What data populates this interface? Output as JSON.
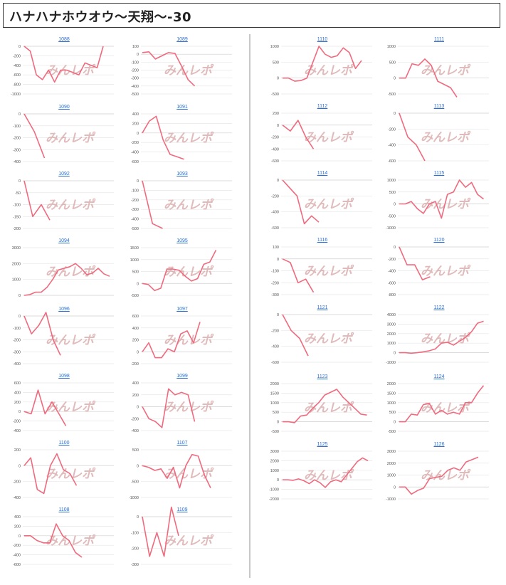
{
  "header": {
    "title": "ハナハナホウオウ〜天翔〜-30"
  },
  "style": {
    "line_color": "#f06a7e",
    "grid_color": "#e6e6e6",
    "axis_label_color": "#555555",
    "link_color": "#2a6fd6",
    "watermark_color": "#d7a5a5",
    "watermark_text": "みんレポ"
  },
  "chart_data": [
    {
      "type": "line",
      "title": "1088",
      "yticks": [
        0,
        -200,
        -400,
        -600,
        -800,
        -1000
      ],
      "ylim": [
        -1000,
        0
      ],
      "y": [
        0,
        -100,
        -600,
        -700,
        -500,
        -750,
        -500,
        -500,
        -550,
        -600,
        -350,
        -400,
        -450,
        0
      ]
    },
    {
      "type": "line",
      "title": "1089",
      "yticks": [
        100,
        0,
        -100,
        -200,
        -300,
        -400,
        -500
      ],
      "ylim": [
        -500,
        100
      ],
      "y": [
        20,
        30,
        -60,
        -20,
        20,
        10,
        -150,
        -320,
        -400
      ]
    },
    {
      "type": "line",
      "title": "1090",
      "yticks": [
        0,
        -100,
        -200,
        -300,
        -400
      ],
      "ylim": [
        -400,
        0
      ],
      "y": [
        0,
        -150,
        -370
      ]
    },
    {
      "type": "line",
      "title": "1091",
      "yticks": [
        400,
        200,
        0,
        -200,
        -400,
        -600
      ],
      "ylim": [
        -600,
        400
      ],
      "y": [
        0,
        250,
        350,
        -150,
        -450,
        -500,
        -550
      ]
    },
    {
      "type": "line",
      "title": "1092",
      "yticks": [
        0,
        -50,
        -100,
        -150,
        -200
      ],
      "ylim": [
        -200,
        0
      ],
      "y": [
        0,
        -150,
        -100,
        -165
      ]
    },
    {
      "type": "line",
      "title": "1093",
      "yticks": [
        0,
        -100,
        -200,
        -300,
        -400,
        -500
      ],
      "ylim": [
        -500,
        0
      ],
      "y": [
        0,
        -450,
        -500
      ]
    },
    {
      "type": "line",
      "title": "1094",
      "yticks": [
        3000,
        2000,
        1000,
        0
      ],
      "ylim": [
        0,
        3000
      ],
      "y": [
        0,
        50,
        200,
        200,
        500,
        1000,
        1600,
        1700,
        1800,
        2000,
        1700,
        1300,
        1400,
        1700,
        1350,
        1200
      ]
    },
    {
      "type": "line",
      "title": "1095",
      "yticks": [
        1500,
        1000,
        500,
        0,
        -500
      ],
      "ylim": [
        -500,
        1500
      ],
      "y": [
        0,
        -50,
        -300,
        -200,
        600,
        600,
        550,
        300,
        100,
        200,
        800,
        900,
        1400
      ]
    },
    {
      "type": "line",
      "title": "1096",
      "yticks": [
        0,
        -100,
        -200,
        -300,
        -400
      ],
      "ylim": [
        -400,
        0
      ],
      "y": [
        0,
        -150,
        -80,
        30,
        -200,
        -330
      ]
    },
    {
      "type": "line",
      "title": "1097",
      "yticks": [
        600,
        400,
        200,
        0,
        -200
      ],
      "ylim": [
        -200,
        600
      ],
      "y": [
        0,
        150,
        -100,
        -100,
        50,
        0,
        300,
        350,
        150,
        500
      ]
    },
    {
      "type": "line",
      "title": "1098",
      "yticks": [
        600,
        400,
        200,
        0,
        -200,
        -400
      ],
      "ylim": [
        -400,
        600
      ],
      "y": [
        0,
        -50,
        450,
        -50,
        200,
        -50,
        -300
      ]
    },
    {
      "type": "line",
      "title": "1099",
      "yticks": [
        400,
        200,
        0,
        -200,
        -400
      ],
      "ylim": [
        -400,
        400
      ],
      "y": [
        0,
        -200,
        -250,
        -350,
        300,
        200,
        240,
        200,
        -250
      ]
    },
    {
      "type": "line",
      "title": "1100",
      "yticks": [
        200,
        0,
        -200,
        -400
      ],
      "ylim": [
        -400,
        200
      ],
      "y": [
        0,
        100,
        -300,
        -350,
        0,
        150,
        -50,
        -100,
        -250
      ]
    },
    {
      "type": "line",
      "title": "1107",
      "yticks": [
        500,
        0,
        -500,
        -1000
      ],
      "ylim": [
        -1000,
        500
      ],
      "y": [
        0,
        -50,
        -150,
        -100,
        -400,
        -50,
        -700,
        0,
        350,
        300,
        -300,
        -700
      ]
    },
    {
      "type": "line",
      "title": "1108",
      "yticks": [
        400,
        200,
        0,
        -200,
        -400,
        -600
      ],
      "ylim": [
        -600,
        400
      ],
      "y": [
        0,
        0,
        -100,
        -150,
        -150,
        250,
        0,
        -100,
        -350,
        -450
      ]
    },
    {
      "type": "line",
      "title": "1109",
      "yticks": [
        0,
        -100,
        -200,
        -300
      ],
      "ylim": [
        -300,
        0
      ],
      "y": [
        0,
        -250,
        -100,
        -250,
        60,
        -120
      ]
    },
    {
      "type": "line",
      "title": "1110",
      "yticks": [
        1000,
        500,
        0,
        -500
      ],
      "ylim": [
        -500,
        1000
      ],
      "y": [
        0,
        0,
        -100,
        -80,
        0,
        500,
        1000,
        750,
        650,
        700,
        950,
        800,
        300,
        550
      ]
    },
    {
      "type": "line",
      "title": "1111",
      "yticks": [
        1000,
        500,
        0,
        -500
      ],
      "ylim": [
        -500,
        1000
      ],
      "y": [
        0,
        0,
        450,
        400,
        600,
        400,
        -100,
        -200,
        -300,
        -600
      ]
    },
    {
      "type": "line",
      "title": "1112",
      "yticks": [
        200,
        0,
        -200,
        -400,
        -600
      ],
      "ylim": [
        -600,
        200
      ],
      "y": [
        0,
        -100,
        80,
        -200,
        -400
      ]
    },
    {
      "type": "line",
      "title": "1113",
      "yticks": [
        0,
        -200,
        -400,
        -600
      ],
      "ylim": [
        -600,
        0
      ],
      "y": [
        0,
        -300,
        -400,
        -600
      ]
    },
    {
      "type": "line",
      "title": "1114",
      "yticks": [
        0,
        -200,
        -400,
        -600
      ],
      "ylim": [
        -600,
        0
      ],
      "y": [
        0,
        -100,
        -200,
        -550,
        -450,
        -530
      ]
    },
    {
      "type": "line",
      "title": "1115",
      "yticks": [
        1000,
        500,
        0,
        -500,
        -1000
      ],
      "ylim": [
        -1000,
        1000
      ],
      "y": [
        0,
        0,
        100,
        -200,
        -400,
        0,
        100,
        -600,
        400,
        500,
        1000,
        700,
        900,
        400,
        200
      ]
    },
    {
      "type": "line",
      "title": "1116",
      "yticks": [
        100,
        0,
        -100,
        -200,
        -300
      ],
      "ylim": [
        -300,
        100
      ],
      "y": [
        0,
        -30,
        -200,
        -170,
        -280
      ]
    },
    {
      "type": "line",
      "title": "1120",
      "yticks": [
        0,
        -200,
        -400,
        -600,
        -800
      ],
      "ylim": [
        -800,
        0
      ],
      "y": [
        0,
        -300,
        -300,
        -550,
        -500
      ]
    },
    {
      "type": "line",
      "title": "1121",
      "yticks": [
        0,
        -200,
        -400,
        -600
      ],
      "ylim": [
        -600,
        0
      ],
      "y": [
        0,
        -200,
        -300,
        -520
      ]
    },
    {
      "type": "line",
      "title": "1122",
      "yticks": [
        4000,
        3000,
        2000,
        1000,
        0,
        -1000
      ],
      "ylim": [
        -1000,
        4000
      ],
      "y": [
        0,
        0,
        -50,
        0,
        100,
        200,
        400,
        1000,
        1100,
        800,
        1200,
        1600,
        2200,
        3100,
        3300
      ]
    },
    {
      "type": "line",
      "title": "1123",
      "yticks": [
        2000,
        1500,
        1000,
        500,
        0,
        -500
      ],
      "ylim": [
        -500,
        2000
      ],
      "y": [
        0,
        0,
        -50,
        300,
        350,
        700,
        1000,
        1400,
        1550,
        1700,
        1300,
        1000,
        700,
        400,
        350
      ]
    },
    {
      "type": "line",
      "title": "1124",
      "yticks": [
        2000,
        1500,
        1000,
        500,
        0,
        -500
      ],
      "ylim": [
        -500,
        2000
      ],
      "y": [
        0,
        0,
        400,
        350,
        900,
        950,
        400,
        600,
        400,
        500,
        400,
        1000,
        1000,
        1500,
        1900
      ]
    },
    {
      "type": "line",
      "title": "1125",
      "yticks": [
        3000,
        2000,
        1000,
        0,
        -1000,
        -2000
      ],
      "ylim": [
        -2000,
        3000
      ],
      "y": [
        0,
        0,
        -50,
        100,
        -100,
        -400,
        0,
        -300,
        -800,
        -200,
        0,
        -200,
        500,
        1200,
        1900,
        2300,
        2000
      ]
    },
    {
      "type": "line",
      "title": "1126",
      "yticks": [
        3000,
        2000,
        1000,
        0,
        -1000
      ],
      "ylim": [
        -1000,
        3000
      ],
      "y": [
        0,
        0,
        -600,
        -300,
        -100,
        700,
        800,
        900,
        1400,
        1600,
        1400,
        2100,
        2300,
        2500
      ]
    }
  ]
}
